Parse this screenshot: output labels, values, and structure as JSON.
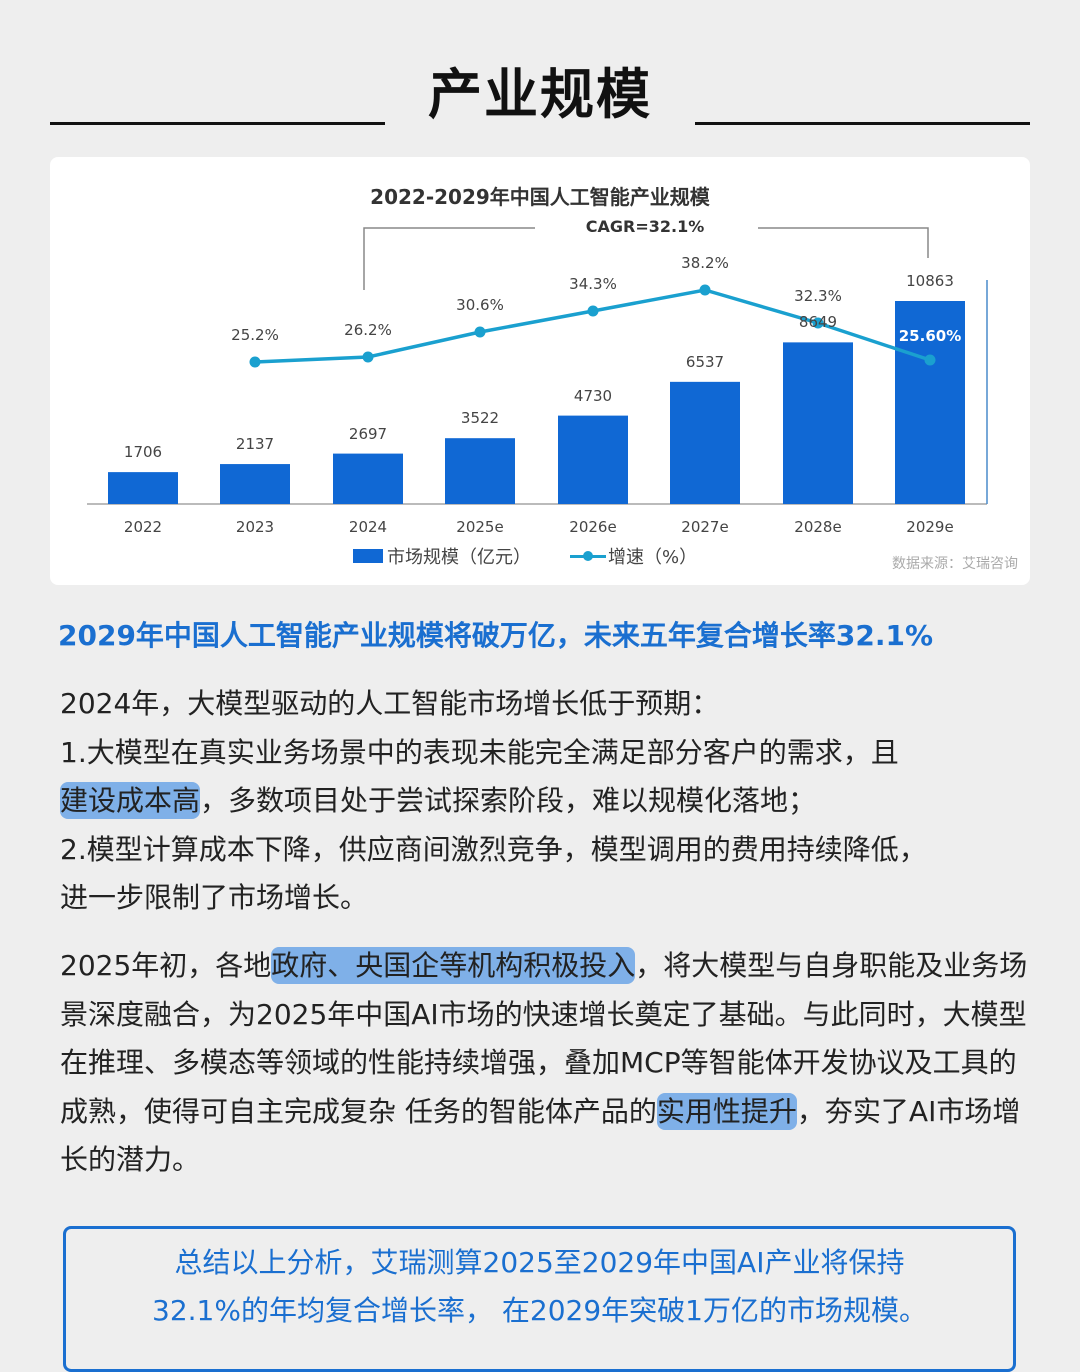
{
  "section_header": {
    "title": "产业规模"
  },
  "chart_data": {
    "type": "bar+line",
    "title": "2022-2029年中国人工智能产业规模",
    "annotation": "CAGR=32.1%",
    "categories": [
      "2022",
      "2023",
      "2024",
      "2025e",
      "2026e",
      "2027e",
      "2028e",
      "2029e"
    ],
    "series": [
      {
        "name": "市场规模（亿元）",
        "type": "bar",
        "color": "#1068d4",
        "values": [
          1706,
          2137,
          2697,
          3522,
          4730,
          6537,
          8649,
          10863
        ],
        "labels": [
          "1706",
          "2137",
          "2697",
          "3522",
          "4730",
          "6537",
          "8649",
          "10863"
        ]
      },
      {
        "name": "增速（%）",
        "type": "line",
        "color": "#1aa0cf",
        "values": [
          null,
          25.2,
          26.2,
          30.6,
          34.3,
          38.2,
          32.3,
          25.6
        ],
        "labels": [
          "",
          "25.2%",
          "26.2%",
          "30.6%",
          "34.3%",
          "38.2%",
          "32.3%",
          "25.60%"
        ]
      }
    ],
    "legend": [
      "市场规模（亿元）",
      "增速（%）"
    ],
    "legend_position": "bottom",
    "source": "数据来源：艾瑞咨询",
    "grid": false
  },
  "headline": "2029年中国人工智能产业规模将破万亿，未来五年复合增长率32.1%",
  "para1": {
    "line1": "2024年，大模型驱动的人工智能市场增长低于预期：",
    "line2": "1.大模型在真实业务场景中的表现未能完全满足部分客户的需求，且",
    "line3_highlight": "建设成本高",
    "line3_rest": "，多数项目处于尝试探索阶段，难以规模化落地；",
    "line4": "2.模型计算成本下降，供应商间激烈竞争，模型调用的费用持续降低，",
    "line5": "进一步限制了市场增长。"
  },
  "para2": {
    "pre": "2025年初，各地",
    "highlight1": "政府、央国企等机构积极投入",
    "mid": "，将大模型与自身职能及业务场景深度融合，为2025年中国AI市场的快速增长奠定了基础。与此同时，大模型在推理、多模态等领域的性能持续增强，叠加MCP等智能体开发协议及工具的成熟，使得可自主完成复杂 任务的智能体产品的",
    "highlight2": "实用性提升",
    "post": "，夯实了AI市场增长的潜力。"
  },
  "summary": {
    "line1": "总结以上分析，艾瑞测算2025至2029年中国AI产业将保持",
    "line2": "32.1%的年均复合增长率， 在2029年突破1万亿的市场规模。"
  },
  "colors": {
    "accent": "#1a6fd0",
    "bar": "#1068d4",
    "line": "#1aa0cf",
    "highlight": "#7fb0e8",
    "background": "#eeeeee"
  }
}
